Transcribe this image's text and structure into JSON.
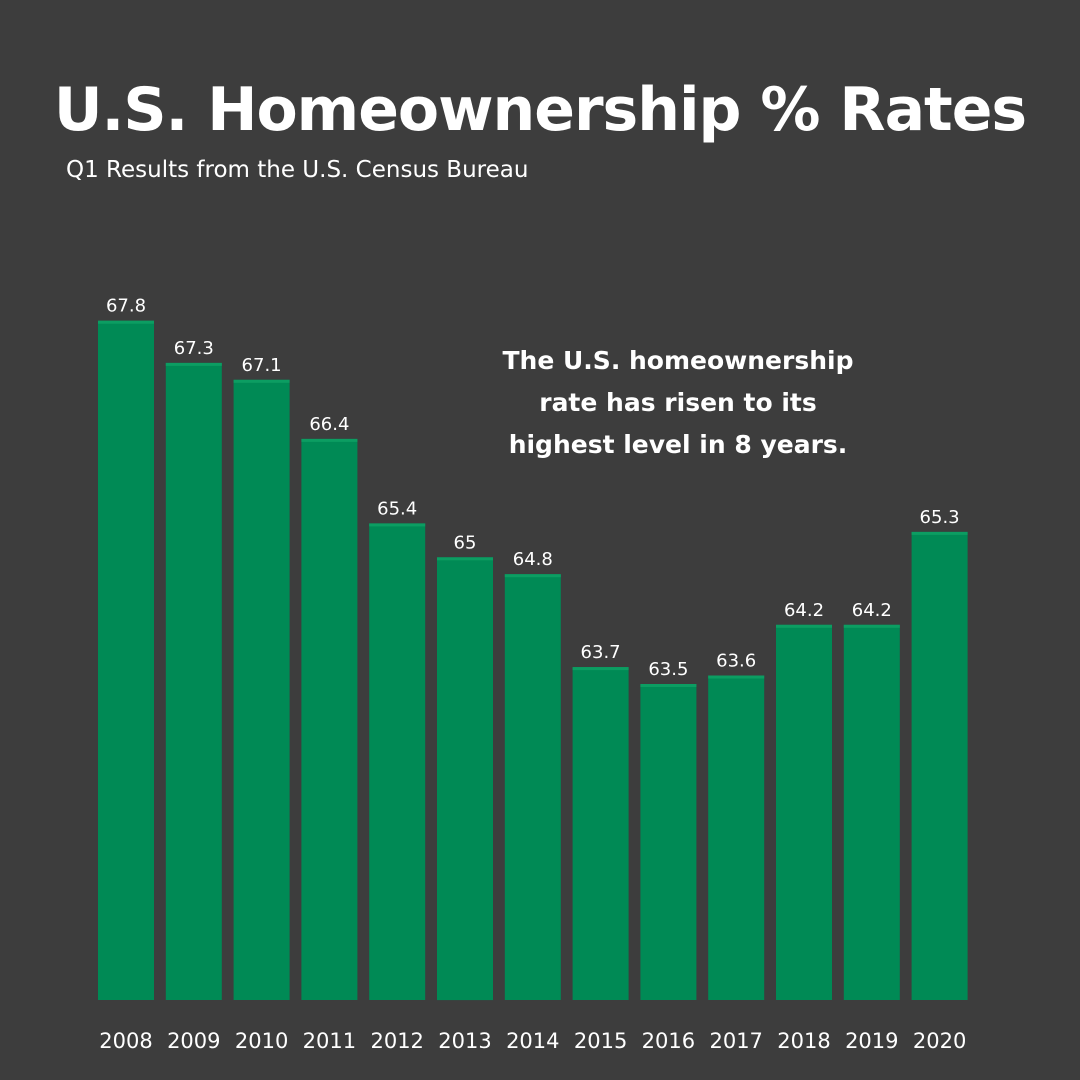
{
  "header": {
    "title": "U.S. Homeownership % Rates",
    "subtitle": "Q1 Results from the U.S. Census Bureau"
  },
  "annotation": {
    "line1": "The U.S. homeownership",
    "line2": "rate has risen to its",
    "line3": "highest level in 8 years."
  },
  "colors": {
    "background": "#3d3d3d",
    "bar": "#008a55",
    "text": "#ffffff"
  },
  "chart_data": {
    "type": "bar",
    "title": "U.S. Homeownership % Rates",
    "subtitle": "Q1 Results from the U.S. Census Bureau",
    "categories": [
      "2008",
      "2009",
      "2010",
      "2011",
      "2012",
      "2013",
      "2014",
      "2015",
      "2016",
      "2017",
      "2018",
      "2019",
      "2020"
    ],
    "values": [
      67.8,
      67.3,
      67.1,
      66.4,
      65.4,
      65,
      64.8,
      63.7,
      63.5,
      63.6,
      64.2,
      64.2,
      65.3
    ],
    "value_labels": [
      "67.8",
      "67.3",
      "67.1",
      "66.4",
      "65.4",
      "65",
      "64.8",
      "63.7",
      "63.5",
      "63.6",
      "64.2",
      "64.2",
      "65.3"
    ],
    "xlabel": "",
    "ylabel": "",
    "grid": false,
    "legend": "none"
  }
}
